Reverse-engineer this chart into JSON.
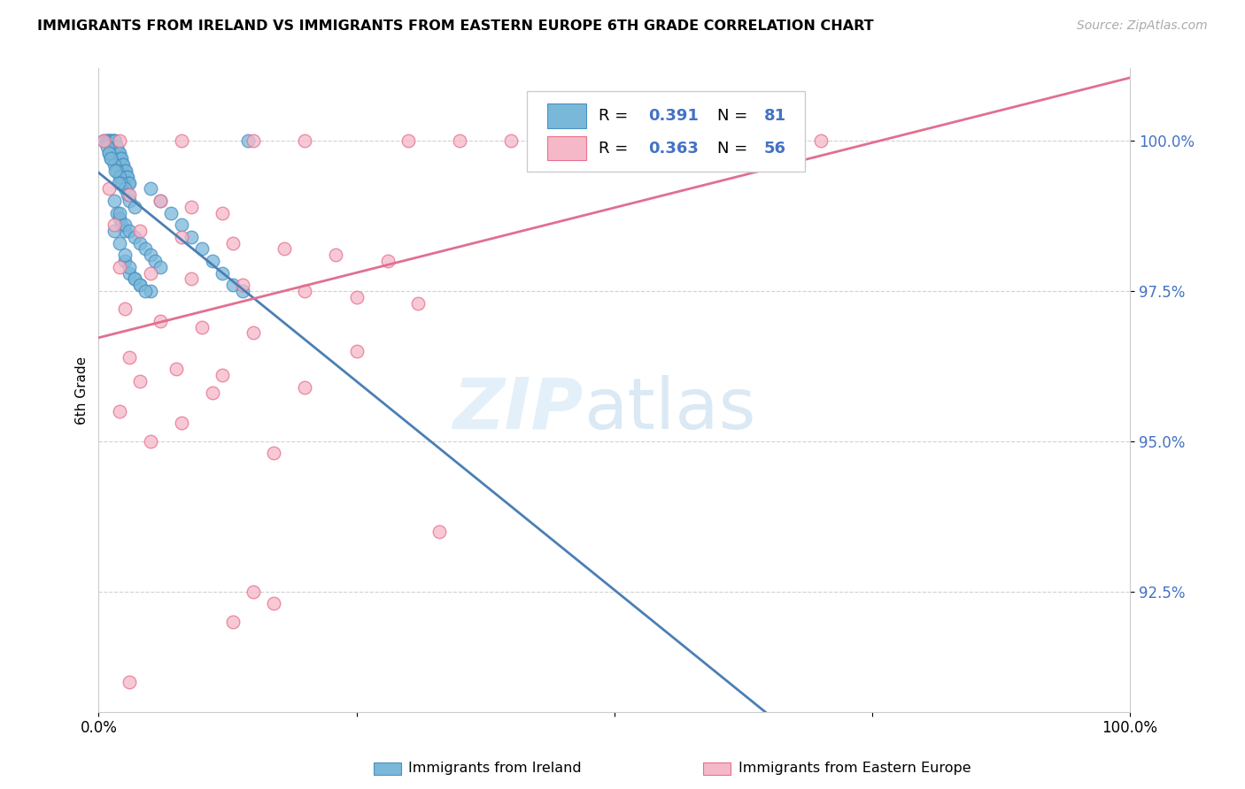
{
  "title": "IMMIGRANTS FROM IRELAND VS IMMIGRANTS FROM EASTERN EUROPE 6TH GRADE CORRELATION CHART",
  "source": "Source: ZipAtlas.com",
  "ylabel": "6th Grade",
  "color_ireland": "#7ab8d9",
  "color_ireland_edge": "#4a90c4",
  "color_ireland_line": "#4a7fb5",
  "color_eastern": "#f5b8c8",
  "color_eastern_edge": "#e87090",
  "color_eastern_line": "#e07090",
  "background_color": "#ffffff",
  "y_ticks": [
    92.5,
    95.0,
    97.5,
    100.0
  ],
  "x_min": 0.0,
  "x_max": 1.0,
  "y_min": 90.5,
  "y_max": 101.2
}
